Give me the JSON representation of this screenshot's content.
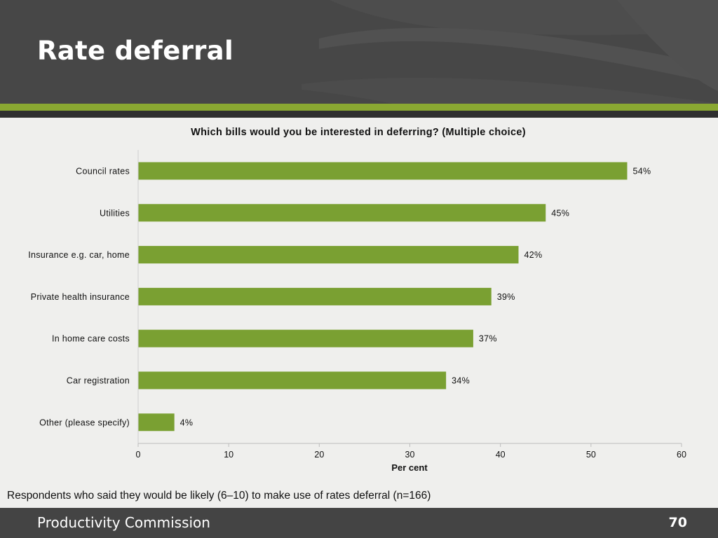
{
  "slide": {
    "title": "Rate deferral"
  },
  "note": "Respondents who said they would be likely (6–10) to make use of rates deferral (n=166)",
  "footer": {
    "organisation": "Productivity Commission",
    "page_number": "70"
  },
  "colors": {
    "header": "#474747",
    "accent": "#8aa832",
    "bar": "#7aa032",
    "footer": "#444444",
    "background": "#efefed"
  },
  "chart_data": {
    "type": "bar",
    "orientation": "horizontal",
    "title": "Which bills would you be interested in deferring? (Multiple choice)",
    "xlabel": "Per cent",
    "ylabel": "",
    "categories": [
      "Council rates",
      "Utilities",
      "Insurance e.g. car, home",
      "Private health insurance",
      "In home care costs",
      "Car registration",
      "Other (please specify)"
    ],
    "values": [
      54,
      45,
      42,
      39,
      37,
      34,
      4
    ],
    "data_labels": [
      "54%",
      "45%",
      "42%",
      "39%",
      "37%",
      "34%",
      "4%"
    ],
    "xlim": [
      0,
      60
    ],
    "xticks": [
      0,
      10,
      20,
      30,
      40,
      50,
      60
    ],
    "grid": false,
    "legend": "none"
  }
}
